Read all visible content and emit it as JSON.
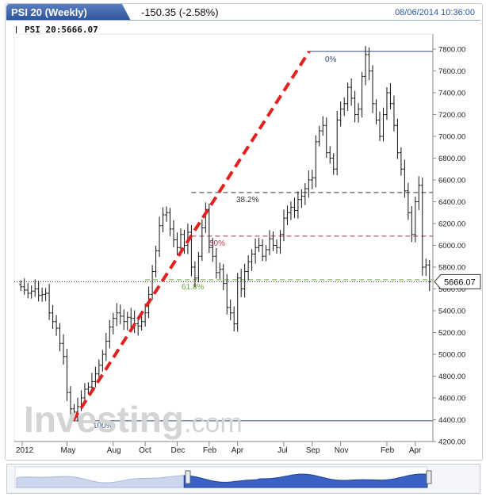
{
  "header": {
    "title": "PSI 20 (Weekly)",
    "change": "-150.35 (-2.58%)",
    "timestamp": "08/06/2014 10:36:00"
  },
  "legend": {
    "label": "PSI 20:5666.07"
  },
  "watermark": {
    "brand": "Investing",
    "suffix": ".com"
  },
  "chart_data": {
    "type": "candlestick",
    "y_ticks": [
      "4200.00",
      "4400.00",
      "4600.00",
      "4800.00",
      "5000.00",
      "5200.00",
      "5400.00",
      "5600.00",
      "5800.00",
      "6000.00",
      "6200.00",
      "6400.00",
      "6600.00",
      "6800.00",
      "7000.00",
      "7200.00",
      "7400.00",
      "7600.00",
      "7800.00"
    ],
    "ylim": [
      4200,
      7880
    ],
    "x_tick_labels": [
      "2012",
      "May",
      "Aug",
      "Oct",
      "Dec",
      "Feb",
      "Apr",
      "Jul",
      "Sep",
      "Nov",
      "Feb",
      "Apr"
    ],
    "last_price": 5666.07,
    "last_price_label": "5666.07",
    "fibonacci": {
      "high": 7780,
      "low": 4390,
      "levels": [
        {
          "label": "0%",
          "value": 7780,
          "color": "#2d4f7e"
        },
        {
          "label": "38.2%",
          "value": 6485,
          "color": "#333333"
        },
        {
          "label": "50%",
          "value": 6085,
          "color": "#b0354d"
        },
        {
          "label": "61.8%",
          "value": 5685,
          "color": "#6aaa3a"
        },
        {
          "label": "100%",
          "value": 4390,
          "color": "#2d4f7e"
        }
      ]
    },
    "trendline": {
      "from_value": 4390,
      "to_value": 7780,
      "color": "#e32020"
    },
    "closes": [
      5620,
      5590,
      5560,
      5580,
      5600,
      5540,
      5550,
      5560,
      5380,
      5300,
      5240,
      5100,
      4980,
      4650,
      4500,
      4470,
      4520,
      4600,
      4680,
      4700,
      4750,
      4820,
      4900,
      5000,
      5120,
      5250,
      5330,
      5380,
      5350,
      5300,
      5340,
      5330,
      5280,
      5260,
      5300,
      5380,
      5550,
      5760,
      5950,
      6180,
      6280,
      6300,
      6150,
      6050,
      5980,
      6100,
      6000,
      6120,
      5800,
      5700,
      5900,
      6160,
      6330,
      5980,
      5900,
      5750,
      5780,
      5650,
      5430,
      5380,
      5280,
      5700,
      5600,
      5760,
      5850,
      5920,
      5980,
      6000,
      5900,
      5960,
      6060,
      6000,
      5980,
      6100,
      6250,
      6300,
      6350,
      6320,
      6420,
      6450,
      6520,
      6600,
      6620,
      6950,
      7050,
      7100,
      6850,
      6800,
      6700,
      7150,
      7250,
      7300,
      7450,
      7350,
      7200,
      7250,
      7550,
      7750,
      7600,
      7300,
      7150,
      7000,
      7200,
      7400,
      7300,
      7100,
      6850,
      6700,
      6500,
      6300,
      6100,
      6400,
      6550,
      5800,
      5820,
      5666
    ]
  }
}
